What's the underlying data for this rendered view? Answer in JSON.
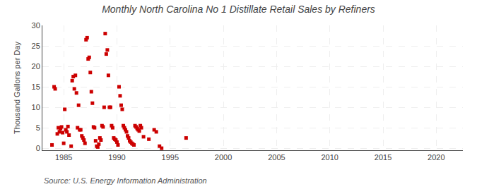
{
  "chart_data": {
    "type": "scatter",
    "title": "Monthly North Carolina No 1 Distillate Retail Sales by Refiners",
    "ylabel": "Thousand Gallons per Day",
    "annotations": [
      "Source: U.S. Energy Information Administration"
    ],
    "color": "#cc0000",
    "marker": "square",
    "grid": true,
    "xlim": [
      1983.0,
      2022.5
    ],
    "ylim": [
      -0.5,
      30
    ],
    "xticks": [
      1985,
      1990,
      1995,
      2000,
      2005,
      2010,
      2015,
      2020
    ],
    "yticks": [
      0,
      5,
      10,
      15,
      20,
      25,
      30
    ],
    "x": [
      1983.9,
      1984.1,
      1984.2,
      1984.4,
      1984.5,
      1984.6,
      1984.7,
      1984.8,
      1984.9,
      1985.0,
      1985.1,
      1985.2,
      1985.3,
      1985.4,
      1985.5,
      1985.7,
      1985.8,
      1985.9,
      1986.0,
      1986.1,
      1986.2,
      1986.3,
      1986.4,
      1986.5,
      1986.6,
      1986.7,
      1986.8,
      1986.9,
      1987.0,
      1987.1,
      1987.2,
      1987.3,
      1987.4,
      1987.5,
      1987.6,
      1987.7,
      1987.8,
      1987.9,
      1988.0,
      1988.1,
      1988.2,
      1988.3,
      1988.4,
      1988.5,
      1988.6,
      1988.7,
      1988.8,
      1988.9,
      1989.0,
      1989.1,
      1989.2,
      1989.3,
      1989.4,
      1989.5,
      1989.6,
      1989.7,
      1989.8,
      1989.9,
      1990.0,
      1990.1,
      1990.2,
      1990.3,
      1990.4,
      1990.5,
      1990.6,
      1990.7,
      1990.8,
      1990.9,
      1991.0,
      1991.1,
      1991.2,
      1991.3,
      1991.4,
      1991.5,
      1991.6,
      1991.7,
      1991.8,
      1991.9,
      1992.0,
      1992.1,
      1992.2,
      1992.3,
      1992.5,
      1993.0,
      1993.5,
      1993.7,
      1994.0,
      1994.2,
      1996.5
    ],
    "values": [
      0.8,
      15.0,
      14.5,
      3.5,
      5.0,
      4.0,
      4.8,
      5.2,
      3.8,
      1.2,
      9.5,
      4.5,
      4.0,
      5.3,
      3.2,
      0.5,
      16.5,
      17.5,
      14.5,
      17.8,
      13.5,
      5.0,
      10.5,
      4.5,
      4.5,
      3.0,
      2.5,
      2.0,
      1.2,
      26.5,
      27.0,
      21.8,
      22.2,
      18.5,
      13.8,
      11.0,
      5.2,
      5.0,
      1.8,
      0.5,
      0.3,
      1.0,
      2.5,
      2.0,
      5.5,
      5.2,
      10.0,
      28.0,
      23.0,
      24.0,
      17.8,
      10.0,
      10.0,
      5.5,
      5.0,
      2.5,
      2.2,
      2.0,
      1.5,
      0.8,
      15.0,
      12.8,
      10.5,
      9.5,
      5.5,
      5.0,
      4.5,
      4.0,
      3.0,
      2.5,
      1.8,
      1.5,
      1.2,
      1.0,
      0.8,
      5.5,
      5.2,
      4.8,
      4.5,
      4.2,
      5.5,
      5.0,
      2.8,
      2.2,
      4.5,
      4.0,
      0.5,
      0.0,
      2.5
    ]
  }
}
